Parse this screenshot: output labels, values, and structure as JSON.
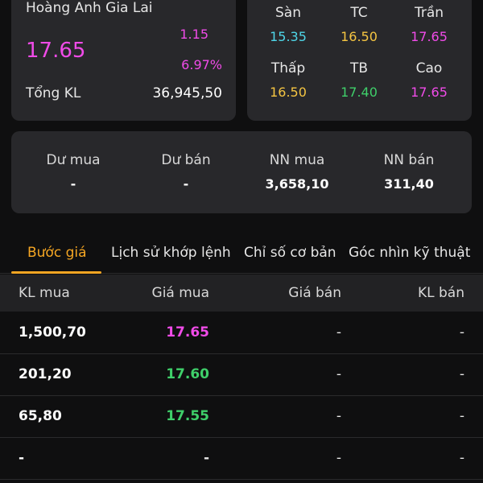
{
  "stock": {
    "name": "Hoàng Anh Gia Lai",
    "price": "17.65",
    "change": "1.15",
    "change_pct": "6.97%",
    "volume_label": "Tổng KL",
    "volume_value": "36,945,50",
    "price_color": "#f04be8"
  },
  "range": {
    "san": {
      "label": "Sàn",
      "value": "15.35",
      "color": "#4fd6e8"
    },
    "tc": {
      "label": "TC",
      "value": "16.50",
      "color": "#f5c542"
    },
    "tran": {
      "label": "Trần",
      "value": "17.65",
      "color": "#f04be8"
    },
    "thap": {
      "label": "Thấp",
      "value": "16.50",
      "color": "#f5c542"
    },
    "tb": {
      "label": "TB",
      "value": "17.40",
      "color": "#3fcf6a"
    },
    "cao": {
      "label": "Cao",
      "value": "17.65",
      "color": "#f04be8"
    }
  },
  "flow": {
    "du_mua": {
      "label": "Dư mua",
      "value": "-"
    },
    "du_ban": {
      "label": "Dư bán",
      "value": "-"
    },
    "nn_mua": {
      "label": "NN mua",
      "value": "3,658,10"
    },
    "nn_ban": {
      "label": "NN bán",
      "value": "311,40"
    }
  },
  "tabs": [
    {
      "label": "Bước giá",
      "active": true
    },
    {
      "label": "Lịch sử khớp lệnh",
      "active": false
    },
    {
      "label": "Chỉ số cơ bản",
      "active": false
    },
    {
      "label": "Góc nhìn kỹ thuật",
      "active": false
    }
  ],
  "table": {
    "headers": {
      "bid_vol": "KL mua",
      "bid_price": "Giá mua",
      "ask_price": "Giá bán",
      "ask_vol": "KL bán"
    },
    "rows": [
      {
        "bid_vol": "1,500,70",
        "bid_price": "17.65",
        "price_color": "#f04be8",
        "ask_price": "-",
        "ask_vol": "-"
      },
      {
        "bid_vol": "201,20",
        "bid_price": "17.60",
        "price_color": "#3fcf6a",
        "ask_price": "-",
        "ask_vol": "-"
      },
      {
        "bid_vol": "65,80",
        "bid_price": "17.55",
        "price_color": "#3fcf6a",
        "ask_price": "-",
        "ask_vol": "-"
      },
      {
        "bid_vol": "-",
        "bid_price": "-",
        "price_color": "#e6e6e6",
        "ask_price": "-",
        "ask_vol": "-"
      }
    ]
  }
}
